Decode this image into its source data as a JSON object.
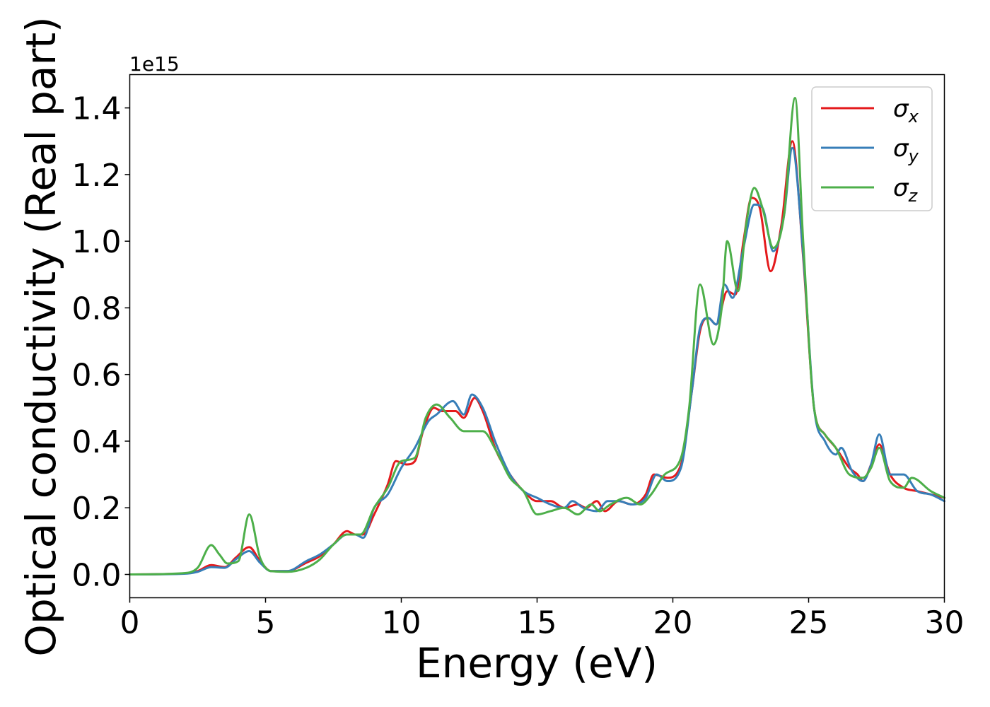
{
  "chart_data": {
    "type": "line",
    "title": "",
    "xlabel": "Energy (eV)",
    "ylabel": "Optical conductivity (Real part)",
    "y_offset_text": "1e15",
    "xlim": [
      0,
      30
    ],
    "ylim": [
      -0.07,
      1.5
    ],
    "xticks": [
      0,
      5,
      10,
      15,
      20,
      25,
      30
    ],
    "xtick_labels": [
      "0",
      "5",
      "10",
      "15",
      "20",
      "25",
      "30"
    ],
    "yticks": [
      0.0,
      0.2,
      0.4,
      0.6,
      0.8,
      1.0,
      1.2,
      1.4
    ],
    "ytick_labels": [
      "0.0",
      "0.2",
      "0.4",
      "0.6",
      "0.8",
      "1.0",
      "1.2",
      "1.4"
    ],
    "grid": false,
    "legend_position": "top-right",
    "series": [
      {
        "name": "σx",
        "symbol": "σ",
        "subscript": "x",
        "color": "#e41a1c",
        "points": [
          [
            0,
            0
          ],
          [
            2,
            0.003
          ],
          [
            2.5,
            0.01
          ],
          [
            3,
            0.028
          ],
          [
            3.5,
            0.022
          ],
          [
            3.9,
            0.05
          ],
          [
            4.4,
            0.082
          ],
          [
            4.8,
            0.04
          ],
          [
            5.2,
            0.01
          ],
          [
            5.8,
            0.01
          ],
          [
            6.5,
            0.035
          ],
          [
            7,
            0.055
          ],
          [
            7.5,
            0.09
          ],
          [
            8,
            0.13
          ],
          [
            8.3,
            0.12
          ],
          [
            8.6,
            0.12
          ],
          [
            9,
            0.18
          ],
          [
            9.5,
            0.27
          ],
          [
            9.8,
            0.34
          ],
          [
            10.2,
            0.33
          ],
          [
            10.5,
            0.34
          ],
          [
            10.8,
            0.43
          ],
          [
            11.2,
            0.5
          ],
          [
            11.5,
            0.49
          ],
          [
            12,
            0.49
          ],
          [
            12.3,
            0.47
          ],
          [
            12.7,
            0.53
          ],
          [
            13,
            0.49
          ],
          [
            13.5,
            0.37
          ],
          [
            14,
            0.3
          ],
          [
            14.5,
            0.25
          ],
          [
            15,
            0.22
          ],
          [
            15.5,
            0.22
          ],
          [
            16,
            0.2
          ],
          [
            16.5,
            0.21
          ],
          [
            16.8,
            0.2
          ],
          [
            17.2,
            0.22
          ],
          [
            17.5,
            0.19
          ],
          [
            18,
            0.22
          ],
          [
            18.5,
            0.21
          ],
          [
            19,
            0.24
          ],
          [
            19.3,
            0.3
          ],
          [
            19.8,
            0.29
          ],
          [
            20.3,
            0.33
          ],
          [
            20.7,
            0.55
          ],
          [
            21,
            0.73
          ],
          [
            21.3,
            0.77
          ],
          [
            21.6,
            0.75
          ],
          [
            22,
            0.85
          ],
          [
            22.3,
            0.84
          ],
          [
            22.6,
            1.0
          ],
          [
            22.9,
            1.13
          ],
          [
            23.2,
            1.1
          ],
          [
            23.6,
            0.91
          ],
          [
            24,
            1.05
          ],
          [
            24.4,
            1.3
          ],
          [
            24.8,
            0.95
          ],
          [
            25.2,
            0.5
          ],
          [
            25.6,
            0.42
          ],
          [
            26,
            0.38
          ],
          [
            26.5,
            0.32
          ],
          [
            26.8,
            0.3
          ],
          [
            27,
            0.28
          ],
          [
            27.3,
            0.33
          ],
          [
            27.6,
            0.39
          ],
          [
            28,
            0.3
          ],
          [
            28.5,
            0.26
          ],
          [
            29,
            0.25
          ],
          [
            29.5,
            0.24
          ],
          [
            30,
            0.23
          ]
        ]
      },
      {
        "name": "σy",
        "symbol": "σ",
        "subscript": "y",
        "color": "#377eb8",
        "points": [
          [
            0,
            0
          ],
          [
            2,
            0.002
          ],
          [
            2.5,
            0.008
          ],
          [
            3,
            0.022
          ],
          [
            3.5,
            0.02
          ],
          [
            3.9,
            0.045
          ],
          [
            4.4,
            0.07
          ],
          [
            4.8,
            0.035
          ],
          [
            5.2,
            0.01
          ],
          [
            5.8,
            0.01
          ],
          [
            6.5,
            0.04
          ],
          [
            7,
            0.06
          ],
          [
            7.5,
            0.09
          ],
          [
            8,
            0.12
          ],
          [
            8.3,
            0.12
          ],
          [
            8.6,
            0.11
          ],
          [
            9,
            0.2
          ],
          [
            9.5,
            0.24
          ],
          [
            10,
            0.32
          ],
          [
            10.5,
            0.38
          ],
          [
            11,
            0.46
          ],
          [
            11.3,
            0.48
          ],
          [
            11.9,
            0.52
          ],
          [
            12.3,
            0.48
          ],
          [
            12.6,
            0.54
          ],
          [
            13,
            0.5
          ],
          [
            13.5,
            0.39
          ],
          [
            14,
            0.3
          ],
          [
            14.5,
            0.25
          ],
          [
            15,
            0.23
          ],
          [
            15.5,
            0.21
          ],
          [
            16,
            0.2
          ],
          [
            16.3,
            0.22
          ],
          [
            16.7,
            0.2
          ],
          [
            17.2,
            0.19
          ],
          [
            17.6,
            0.22
          ],
          [
            18,
            0.22
          ],
          [
            18.5,
            0.21
          ],
          [
            19,
            0.23
          ],
          [
            19.4,
            0.3
          ],
          [
            19.8,
            0.28
          ],
          [
            20.3,
            0.32
          ],
          [
            20.7,
            0.55
          ],
          [
            21,
            0.74
          ],
          [
            21.3,
            0.77
          ],
          [
            21.6,
            0.75
          ],
          [
            21.9,
            0.87
          ],
          [
            22.2,
            0.83
          ],
          [
            22.6,
            0.98
          ],
          [
            23,
            1.11
          ],
          [
            23.3,
            1.1
          ],
          [
            23.7,
            0.97
          ],
          [
            24.1,
            1.08
          ],
          [
            24.4,
            1.28
          ],
          [
            24.8,
            0.96
          ],
          [
            25.2,
            0.5
          ],
          [
            25.6,
            0.4
          ],
          [
            26,
            0.36
          ],
          [
            26.2,
            0.38
          ],
          [
            26.6,
            0.31
          ],
          [
            27,
            0.28
          ],
          [
            27.3,
            0.33
          ],
          [
            27.6,
            0.42
          ],
          [
            28,
            0.3
          ],
          [
            28.5,
            0.3
          ],
          [
            29,
            0.25
          ],
          [
            29.5,
            0.24
          ],
          [
            30,
            0.22
          ]
        ]
      },
      {
        "name": "σz",
        "symbol": "σ",
        "subscript": "z",
        "color": "#4daf4a",
        "points": [
          [
            0,
            0
          ],
          [
            2,
            0.004
          ],
          [
            2.5,
            0.02
          ],
          [
            3,
            0.088
          ],
          [
            3.3,
            0.06
          ],
          [
            3.6,
            0.033
          ],
          [
            4,
            0.04
          ],
          [
            4.4,
            0.18
          ],
          [
            4.8,
            0.05
          ],
          [
            5.2,
            0.01
          ],
          [
            5.8,
            0.008
          ],
          [
            6.5,
            0.02
          ],
          [
            7,
            0.045
          ],
          [
            7.5,
            0.09
          ],
          [
            8,
            0.12
          ],
          [
            8.5,
            0.12
          ],
          [
            9,
            0.2
          ],
          [
            9.5,
            0.26
          ],
          [
            10,
            0.34
          ],
          [
            10.5,
            0.35
          ],
          [
            10.9,
            0.47
          ],
          [
            11.3,
            0.51
          ],
          [
            11.8,
            0.47
          ],
          [
            12.3,
            0.43
          ],
          [
            12.7,
            0.43
          ],
          [
            13,
            0.43
          ],
          [
            13.5,
            0.37
          ],
          [
            14,
            0.29
          ],
          [
            14.5,
            0.25
          ],
          [
            15,
            0.18
          ],
          [
            15.5,
            0.19
          ],
          [
            16,
            0.2
          ],
          [
            16.5,
            0.18
          ],
          [
            17,
            0.21
          ],
          [
            17.3,
            0.19
          ],
          [
            17.7,
            0.21
          ],
          [
            18.3,
            0.23
          ],
          [
            18.8,
            0.21
          ],
          [
            19.2,
            0.24
          ],
          [
            19.7,
            0.3
          ],
          [
            20.3,
            0.35
          ],
          [
            20.6,
            0.5
          ],
          [
            21,
            0.87
          ],
          [
            21.5,
            0.69
          ],
          [
            21.8,
            0.8
          ],
          [
            22,
            1.0
          ],
          [
            22.4,
            0.85
          ],
          [
            22.7,
            1.05
          ],
          [
            23,
            1.16
          ],
          [
            23.3,
            1.1
          ],
          [
            23.7,
            0.98
          ],
          [
            24.1,
            1.08
          ],
          [
            24.5,
            1.43
          ],
          [
            24.8,
            1.0
          ],
          [
            25.2,
            0.5
          ],
          [
            25.6,
            0.42
          ],
          [
            26,
            0.38
          ],
          [
            26.5,
            0.3
          ],
          [
            27,
            0.29
          ],
          [
            27.3,
            0.32
          ],
          [
            27.6,
            0.38
          ],
          [
            28,
            0.28
          ],
          [
            28.5,
            0.26
          ],
          [
            28.8,
            0.29
          ],
          [
            29.5,
            0.25
          ],
          [
            30,
            0.23
          ]
        ]
      }
    ]
  }
}
